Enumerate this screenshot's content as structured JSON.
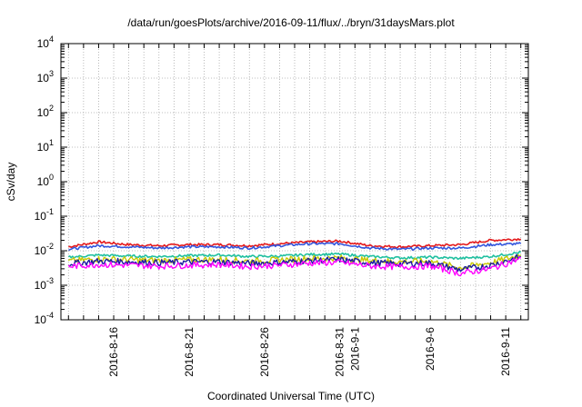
{
  "chart_data": {
    "type": "line",
    "title": "/data/run/goesPlots/archive/2016-09-11/flux/../bryn/31daysMars.plot",
    "xlabel": "Coordinated Universal Time (UTC)",
    "ylabel": "cSv/day",
    "yscale": "log",
    "ylim": [
      0.0001,
      10000
    ],
    "xlim": [
      "2016-08-12T12:00",
      "2016-09-12T12:00"
    ],
    "grid": true,
    "x_ticks": [
      "2016-8-16",
      "2016-8-21",
      "2016-8-26",
      "2016-8-31",
      "2016-9-1",
      "2016-9-6",
      "2016-9-11"
    ],
    "x_tick_dates": [
      "2016-08-16",
      "2016-08-21",
      "2016-08-26",
      "2016-08-31",
      "2016-09-01",
      "2016-09-06",
      "2016-09-11"
    ],
    "y_ticks": [
      {
        "base": "10",
        "exp": "4"
      },
      {
        "base": "10",
        "exp": "3"
      },
      {
        "base": "10",
        "exp": "2"
      },
      {
        "base": "10",
        "exp": "1"
      },
      {
        "base": "10",
        "exp": "0"
      },
      {
        "base": "10",
        "exp": "-1"
      },
      {
        "base": "10",
        "exp": "-2"
      },
      {
        "base": "10",
        "exp": "-3"
      },
      {
        "base": "10",
        "exp": "-4"
      }
    ],
    "x": [
      "2016-08-13",
      "2016-08-15",
      "2016-08-17",
      "2016-08-19",
      "2016-08-21",
      "2016-08-23",
      "2016-08-25",
      "2016-08-27",
      "2016-08-29",
      "2016-08-31",
      "2016-09-02",
      "2016-09-04",
      "2016-09-06",
      "2016-09-08",
      "2016-09-10",
      "2016-09-12"
    ],
    "series": [
      {
        "color": "#e41a1c",
        "values": [
          0.013,
          0.018,
          0.015,
          0.014,
          0.015,
          0.015,
          0.014,
          0.016,
          0.018,
          0.019,
          0.014,
          0.013,
          0.014,
          0.015,
          0.02,
          0.022
        ]
      },
      {
        "color": "#3355dd",
        "values": [
          0.011,
          0.014,
          0.013,
          0.012,
          0.013,
          0.013,
          0.012,
          0.014,
          0.016,
          0.016,
          0.012,
          0.011,
          0.012,
          0.012,
          0.015,
          0.016
        ]
      },
      {
        "color": "#20c0a0",
        "values": [
          0.0065,
          0.0075,
          0.007,
          0.0068,
          0.0072,
          0.0075,
          0.0068,
          0.007,
          0.0078,
          0.008,
          0.0068,
          0.0062,
          0.0065,
          0.006,
          0.0068,
          0.009
        ]
      },
      {
        "color": "#c8c800",
        "values": [
          0.005,
          0.0058,
          0.0055,
          0.0052,
          0.0055,
          0.0056,
          0.005,
          0.0054,
          0.006,
          0.0062,
          0.0052,
          0.0048,
          0.005,
          0.0032,
          0.0045,
          0.0075
        ]
      },
      {
        "color": "#1a1aa0",
        "values": [
          0.0042,
          0.005,
          0.0048,
          0.0045,
          0.0047,
          0.0048,
          0.0043,
          0.0046,
          0.0052,
          0.0055,
          0.0045,
          0.0042,
          0.0044,
          0.0028,
          0.0038,
          0.0068
        ]
      },
      {
        "color": "#ff00ff",
        "values": [
          0.0035,
          0.004,
          0.0038,
          0.0036,
          0.0038,
          0.004,
          0.0035,
          0.0038,
          0.0044,
          0.0046,
          0.0036,
          0.0034,
          0.0036,
          0.0022,
          0.003,
          0.006
        ]
      }
    ]
  }
}
